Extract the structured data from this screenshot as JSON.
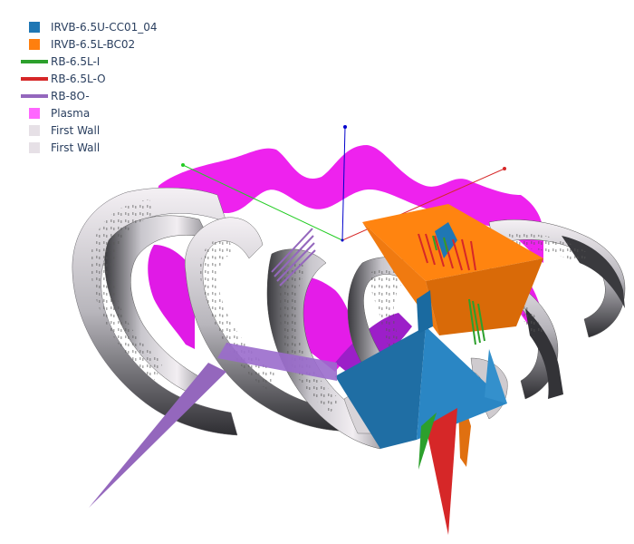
{
  "legend": {
    "items": [
      {
        "label": "IRVB-6.5U-CC01_04",
        "kind": "box",
        "color": "#1f77b4"
      },
      {
        "label": "IRVB-6.5L-BC02",
        "kind": "box",
        "color": "#ff7f0e"
      },
      {
        "label": "RB-6.5L-I",
        "kind": "line",
        "color": "#2ca02c"
      },
      {
        "label": "RB-6.5L-O",
        "kind": "line",
        "color": "#d62728"
      },
      {
        "label": "RB-8O-",
        "kind": "line",
        "color": "#9467bd"
      },
      {
        "label": "Plasma",
        "kind": "box",
        "color": "#ff66ff"
      },
      {
        "label": "First Wall",
        "kind": "box",
        "color": "#e6e0e6"
      },
      {
        "label": "First Wall",
        "kind": "box",
        "color": "#e6e0e6"
      }
    ]
  },
  "colors": {
    "plasma": "#ee22ee",
    "plasma_dark": "#b010b8",
    "wall_light": "#eeeaee",
    "wall_mid": "#a8a8ac",
    "wall_dark": "#3a3a3e",
    "irvb_blue": "#1f77b4",
    "irvb_orange": "#ff7f0e",
    "rb_green": "#2ca02c",
    "rb_red": "#d62728",
    "rb_purple": "#9467bd",
    "axis_x": "#d62728",
    "axis_y": "#22cc22",
    "axis_z": "#0000cc"
  }
}
